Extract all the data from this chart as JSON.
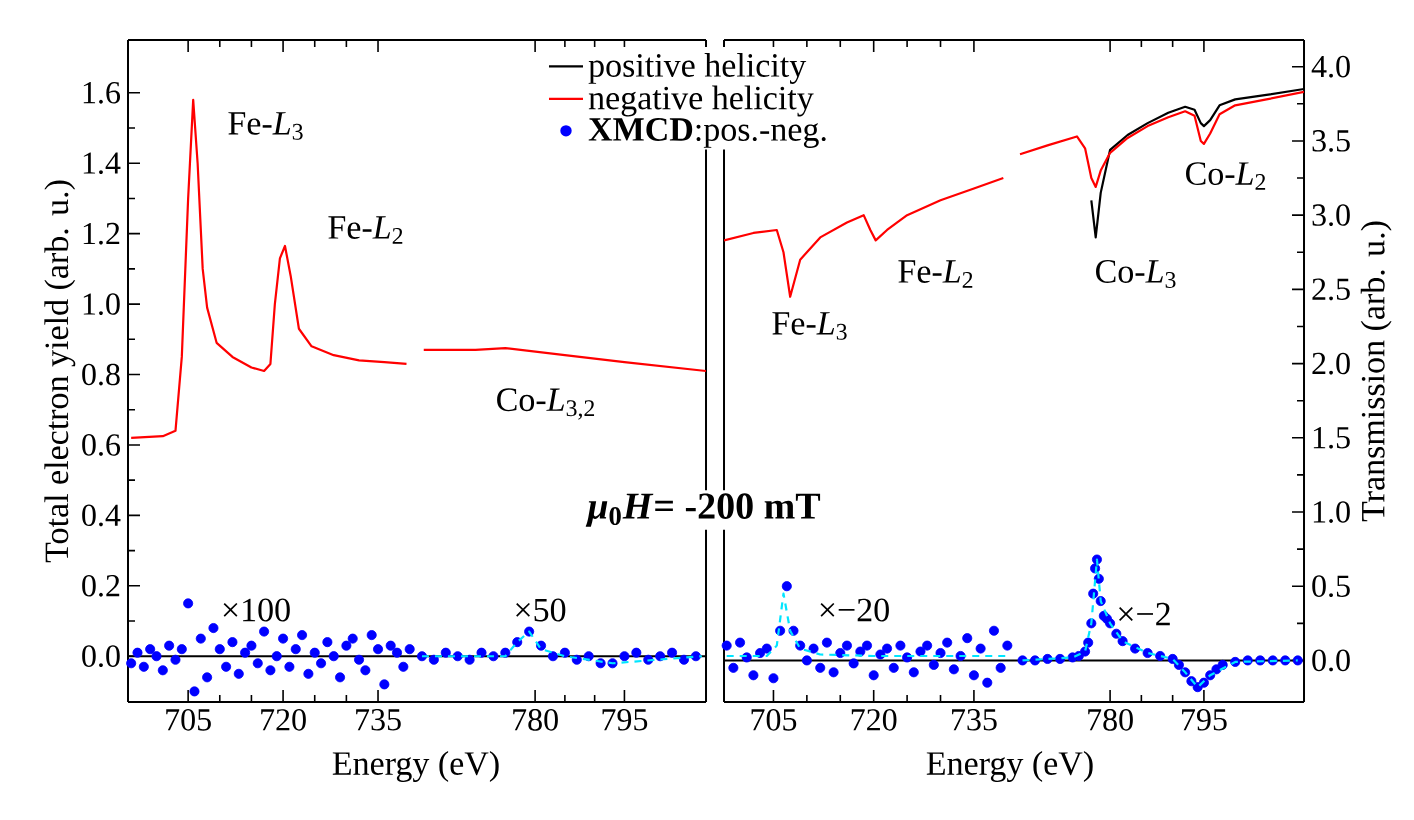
{
  "chart_data": [
    {
      "type": "line",
      "xlabel": "Energy (eV)",
      "ylabel": "Total electron yield (arb. u.)",
      "xlim": [
        695.5,
        741
      ],
      "xticks": [
        705,
        720,
        735
      ],
      "ylim": [
        -0.13,
        1.75
      ],
      "yticks": [
        {
          "value": 0,
          "label": "0.0"
        },
        0.2,
        0.4,
        0.6,
        0.8,
        {
          "value": 1,
          "label": "1.0"
        },
        1.2,
        1.4,
        1.6
      ],
      "ref_lines": [
        {
          "axis": "y",
          "value": 0
        }
      ],
      "annotations": [
        "*μ*$_{0}$*H*= -200 mT",
        "Fe-*L*$_{3}$",
        "Fe-*L*$_{2}$",
        "×100"
      ],
      "series": [
        {
          "type": "line",
          "color": "#ff0000",
          "x": [
            696,
            701,
            703,
            704,
            705,
            705.8,
            706.5,
            707.3,
            708,
            709.5,
            712,
            715,
            717,
            718,
            718.7,
            719.5,
            720.3,
            721.2,
            722.5,
            724.5,
            728,
            732,
            736,
            739.5
          ],
          "values": [
            0.62,
            0.625,
            0.64,
            0.85,
            1.3,
            1.58,
            1.4,
            1.1,
            0.99,
            0.89,
            0.85,
            0.82,
            0.81,
            0.83,
            1.0,
            1.13,
            1.165,
            1.08,
            0.93,
            0.88,
            0.855,
            0.84,
            0.835,
            0.83
          ]
        },
        {
          "type": "scatter",
          "marker": "circle",
          "color": "#0000ff",
          "x": [
            696,
            697,
            698,
            699,
            700,
            701,
            702,
            703,
            704,
            705,
            706,
            707,
            708,
            709,
            710,
            711,
            712,
            713,
            714,
            715,
            716,
            717,
            718,
            719,
            720,
            721,
            722,
            723,
            724,
            725,
            726,
            727,
            728,
            729,
            730,
            731,
            732,
            733,
            734,
            735,
            736,
            737,
            738,
            739,
            740
          ],
          "values": [
            -0.02,
            0.01,
            -0.03,
            0.02,
            0.0,
            -0.04,
            0.03,
            -0.01,
            0.02,
            0.15,
            -0.1,
            0.05,
            -0.06,
            0.08,
            0.02,
            -0.03,
            0.04,
            -0.05,
            0.01,
            0.03,
            -0.02,
            0.07,
            -0.04,
            0.0,
            0.05,
            -0.03,
            0.02,
            0.06,
            -0.05,
            0.01,
            -0.02,
            0.04,
            0.0,
            -0.06,
            0.03,
            0.05,
            -0.01,
            -0.04,
            0.06,
            0.02,
            -0.08,
            0.03,
            0.01,
            -0.03,
            0.02
          ]
        }
      ]
    },
    {
      "type": "line",
      "xlim": [
        760,
        808.7
      ],
      "xticks": [
        780,
        795
      ],
      "ylim": [
        -0.13,
        1.75
      ],
      "tick_labels": "x",
      "ref_lines": [
        {
          "axis": "y",
          "value": 0
        }
      ],
      "annotations": [
        "Co-*L*$_{3,2}$",
        "×50"
      ],
      "series": [
        {
          "type": "line",
          "color": "#ff0000",
          "x": [
            761.3,
            770,
            775,
            785,
            795,
            808.7
          ],
          "values": [
            0.87,
            0.87,
            0.875,
            0.855,
            0.835,
            0.81
          ]
        },
        {
          "type": "scatter",
          "marker": "circle",
          "color": "#0000ff",
          "x": [
            761,
            763,
            765,
            767,
            769,
            771,
            773,
            775,
            777,
            779,
            781,
            783,
            785,
            787,
            789,
            791,
            793,
            795,
            797,
            799,
            801,
            803,
            805,
            807
          ],
          "values": [
            0.0,
            -0.01,
            0.01,
            0.0,
            -0.01,
            0.01,
            0.0,
            0.01,
            0.04,
            0.07,
            0.03,
            0.0,
            0.01,
            -0.01,
            0.0,
            -0.02,
            -0.02,
            0.0,
            0.01,
            -0.01,
            0.0,
            0.01,
            -0.01,
            0.0
          ]
        },
        {
          "type": "line",
          "line_style": "dashed",
          "color": "#00e5ff",
          "x": [
            761,
            775,
            777,
            779,
            781,
            785,
            793,
            808
          ],
          "values": [
            0,
            0,
            0.04,
            0.07,
            0.02,
            0,
            -0.02,
            0
          ]
        }
      ]
    },
    {
      "type": "line",
      "xlabel": "Energy (eV)",
      "xlim": [
        697.6,
        740.4
      ],
      "xticks": [
        705,
        720,
        735
      ],
      "ylim": [
        -0.28,
        4.18
      ],
      "tick_labels": "x",
      "ref_lines": [
        {
          "axis": "y",
          "value": 0
        }
      ],
      "annotations": [
        "Fe-*L*$_{3}$",
        "Fe-*L*$_{2}$",
        "×−20"
      ],
      "series": [
        {
          "type": "line",
          "color": "#ff0000",
          "x": [
            697.6,
            702,
            705.5,
            706.5,
            707.5,
            709,
            712,
            716,
            718.5,
            719.5,
            720.3,
            722,
            725,
            730,
            735,
            739.4
          ],
          "values": [
            2.83,
            2.88,
            2.9,
            2.75,
            2.45,
            2.7,
            2.85,
            2.95,
            3.0,
            2.9,
            2.83,
            2.9,
            3.0,
            3.1,
            3.18,
            3.25
          ]
        },
        {
          "type": "scatter",
          "marker": "circle",
          "color": "#0000ff",
          "x": [
            698,
            699,
            700,
            701,
            702,
            703,
            704,
            705,
            706,
            707,
            708,
            709,
            710,
            711,
            712,
            713,
            714,
            715,
            716,
            717,
            718,
            719,
            720,
            721,
            722,
            723,
            724,
            725,
            726,
            727,
            728,
            729,
            730,
            731,
            732,
            733,
            734,
            735,
            736,
            737,
            738,
            739,
            740
          ],
          "values": [
            0.1,
            -0.05,
            0.12,
            0.02,
            -0.1,
            0.05,
            0.08,
            -0.12,
            0.2,
            0.5,
            0.2,
            0.1,
            0.0,
            0.08,
            -0.05,
            0.12,
            -0.08,
            0.05,
            0.1,
            -0.02,
            0.06,
            0.1,
            -0.1,
            0.04,
            0.08,
            -0.05,
            0.1,
            0.02,
            -0.08,
            0.06,
            0.1,
            -0.03,
            0.05,
            0.12,
            -0.06,
            0.03,
            0.15,
            -0.1,
            0.08,
            -0.15,
            0.2,
            -0.05,
            0.1
          ]
        },
        {
          "type": "line",
          "line_style": "dashed",
          "color": "#00e5ff",
          "x": [
            698,
            704,
            705.5,
            706.5,
            707.5,
            709,
            712,
            720,
            740
          ],
          "values": [
            0.03,
            0.03,
            0.1,
            0.45,
            0.2,
            0.08,
            0.04,
            0.03,
            0.03
          ]
        }
      ]
    },
    {
      "type": "line",
      "ylabel": "Transmission (arb. u.)",
      "xlim": [
        764,
        811
      ],
      "xticks": [
        780,
        795
      ],
      "ylim": [
        -0.28,
        4.18
      ],
      "yticks": [
        {
          "value": 0,
          "label": "0.0"
        },
        0.5,
        {
          "value": 1,
          "label": "1.0"
        },
        1.5,
        {
          "value": 2,
          "label": "2.0"
        },
        2.5,
        {
          "value": 3,
          "label": "3.0"
        },
        3.5,
        {
          "value": 4,
          "label": "4.0"
        }
      ],
      "legend": "top left",
      "ref_lines": [
        {
          "axis": "y",
          "value": 0
        }
      ],
      "annotations": [
        "Co-*L*$_{3}$",
        "Co-*L*$_{2}$",
        "×−2"
      ],
      "series": [
        {
          "name": "positive helicity",
          "type": "line",
          "color": "#000000",
          "x": [
            777,
            777.7,
            778.5,
            780,
            782.8,
            786,
            789.3,
            792,
            793.5,
            794.5,
            795,
            796,
            797.5,
            800,
            805,
            811
          ],
          "values": [
            3.1,
            2.85,
            3.15,
            3.44,
            3.54,
            3.62,
            3.69,
            3.73,
            3.71,
            3.62,
            3.6,
            3.64,
            3.74,
            3.78,
            3.81,
            3.85
          ]
        },
        {
          "name": "negative helicity",
          "type": "line",
          "color": "#ff0000",
          "x": [
            765.6,
            770,
            774.7,
            776,
            777,
            777.7,
            778.5,
            780,
            782.8,
            786,
            789.3,
            792,
            793.5,
            794.5,
            795,
            796,
            797.5,
            800,
            805,
            811
          ],
          "values": [
            3.41,
            3.47,
            3.53,
            3.45,
            3.25,
            3.19,
            3.3,
            3.42,
            3.52,
            3.6,
            3.66,
            3.7,
            3.67,
            3.5,
            3.48,
            3.55,
            3.68,
            3.74,
            3.78,
            3.83
          ]
        },
        {
          "name": "**XMCD**:pos.-neg.",
          "type": "scatter",
          "marker": "circle",
          "color": "#0000ff",
          "x": [
            766,
            768,
            770,
            772,
            774,
            775,
            776,
            776.5,
            777,
            777.3,
            777.6,
            777.9,
            778.2,
            778.5,
            779,
            779.5,
            780,
            781,
            782,
            784,
            786,
            788,
            790,
            791,
            792,
            793,
            794,
            795,
            796,
            797,
            798,
            800,
            802,
            804,
            806,
            808,
            810
          ],
          "values": [
            0.0,
            0.0,
            0.01,
            0.01,
            0.02,
            0.03,
            0.06,
            0.12,
            0.25,
            0.45,
            0.62,
            0.68,
            0.55,
            0.4,
            0.3,
            0.28,
            0.25,
            0.18,
            0.13,
            0.08,
            0.05,
            0.03,
            0.01,
            -0.03,
            -0.08,
            -0.14,
            -0.18,
            -0.15,
            -0.1,
            -0.06,
            -0.03,
            -0.01,
            0.0,
            0.0,
            0.0,
            0.0,
            0.0
          ]
        },
        {
          "type": "line",
          "line_style": "dashed",
          "color": "#00e5ff",
          "x": [
            766,
            774,
            776,
            777,
            777.9,
            778.5,
            780,
            782,
            786,
            790,
            792,
            794,
            796,
            800,
            810
          ],
          "values": [
            0,
            0.02,
            0.06,
            0.25,
            0.68,
            0.4,
            0.25,
            0.13,
            0.05,
            0.01,
            -0.08,
            -0.18,
            -0.1,
            -0.01,
            0
          ]
        }
      ]
    }
  ]
}
